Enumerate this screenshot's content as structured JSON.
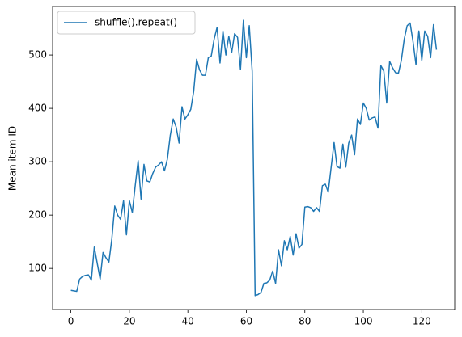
{
  "chart_data": {
    "type": "line",
    "y_label": "Mean item ID",
    "x": [
      0,
      1,
      2,
      3,
      4,
      5,
      6,
      7,
      8,
      9,
      10,
      11,
      12,
      13,
      14,
      15,
      16,
      17,
      18,
      19,
      20,
      21,
      22,
      23,
      24,
      25,
      26,
      27,
      28,
      29,
      30,
      31,
      32,
      33,
      34,
      35,
      36,
      37,
      38,
      39,
      40,
      41,
      42,
      43,
      44,
      45,
      46,
      47,
      48,
      49,
      50,
      51,
      52,
      53,
      54,
      55,
      56,
      57,
      58,
      59,
      60,
      61,
      62,
      63,
      64,
      65,
      66,
      67,
      68,
      69,
      70,
      71,
      72,
      73,
      74,
      75,
      76,
      77,
      78,
      79,
      80,
      81,
      82,
      83,
      84,
      85,
      86,
      87,
      88,
      89,
      90,
      91,
      92,
      93,
      94,
      95,
      96,
      97,
      98,
      99,
      100,
      101,
      102,
      103,
      104,
      105,
      106,
      107,
      108,
      109,
      110,
      111,
      112,
      113,
      114,
      115,
      116,
      117,
      118,
      119,
      120,
      121,
      122,
      123,
      124,
      125
    ],
    "series": [
      {
        "name": "shuffle().repeat()",
        "color": "#1f77b4",
        "values": [
          59,
          58,
          57,
          80,
          85,
          87,
          88,
          78,
          140,
          110,
          80,
          130,
          120,
          112,
          155,
          217,
          200,
          192,
          227,
          163,
          227,
          205,
          255,
          302,
          230,
          295,
          264,
          262,
          278,
          290,
          294,
          300,
          283,
          305,
          350,
          380,
          365,
          335,
          403,
          380,
          388,
          398,
          432,
          492,
          472,
          462,
          462,
          495,
          498,
          530,
          552,
          485,
          545,
          500,
          535,
          505,
          540,
          533,
          473,
          565,
          495,
          555,
          470,
          49,
          51,
          55,
          72,
          73,
          78,
          95,
          72,
          135,
          105,
          152,
          135,
          160,
          125,
          165,
          138,
          145,
          215,
          216,
          214,
          207,
          214,
          207,
          255,
          258,
          243,
          290,
          336,
          291,
          288,
          333,
          290,
          335,
          350,
          313,
          380,
          370,
          410,
          400,
          378,
          382,
          384,
          363,
          480,
          470,
          410,
          488,
          476,
          467,
          466,
          490,
          530,
          555,
          560,
          525,
          482,
          545,
          490,
          545,
          535,
          495,
          557,
          510
        ]
      }
    ],
    "xlim": [
      -6.25,
      131.25
    ],
    "ylim": [
      23,
      591
    ],
    "xticks": [
      0,
      20,
      40,
      60,
      80,
      100,
      120
    ],
    "yticks": [
      100,
      200,
      300,
      400,
      500
    ],
    "legend": "upper left"
  }
}
